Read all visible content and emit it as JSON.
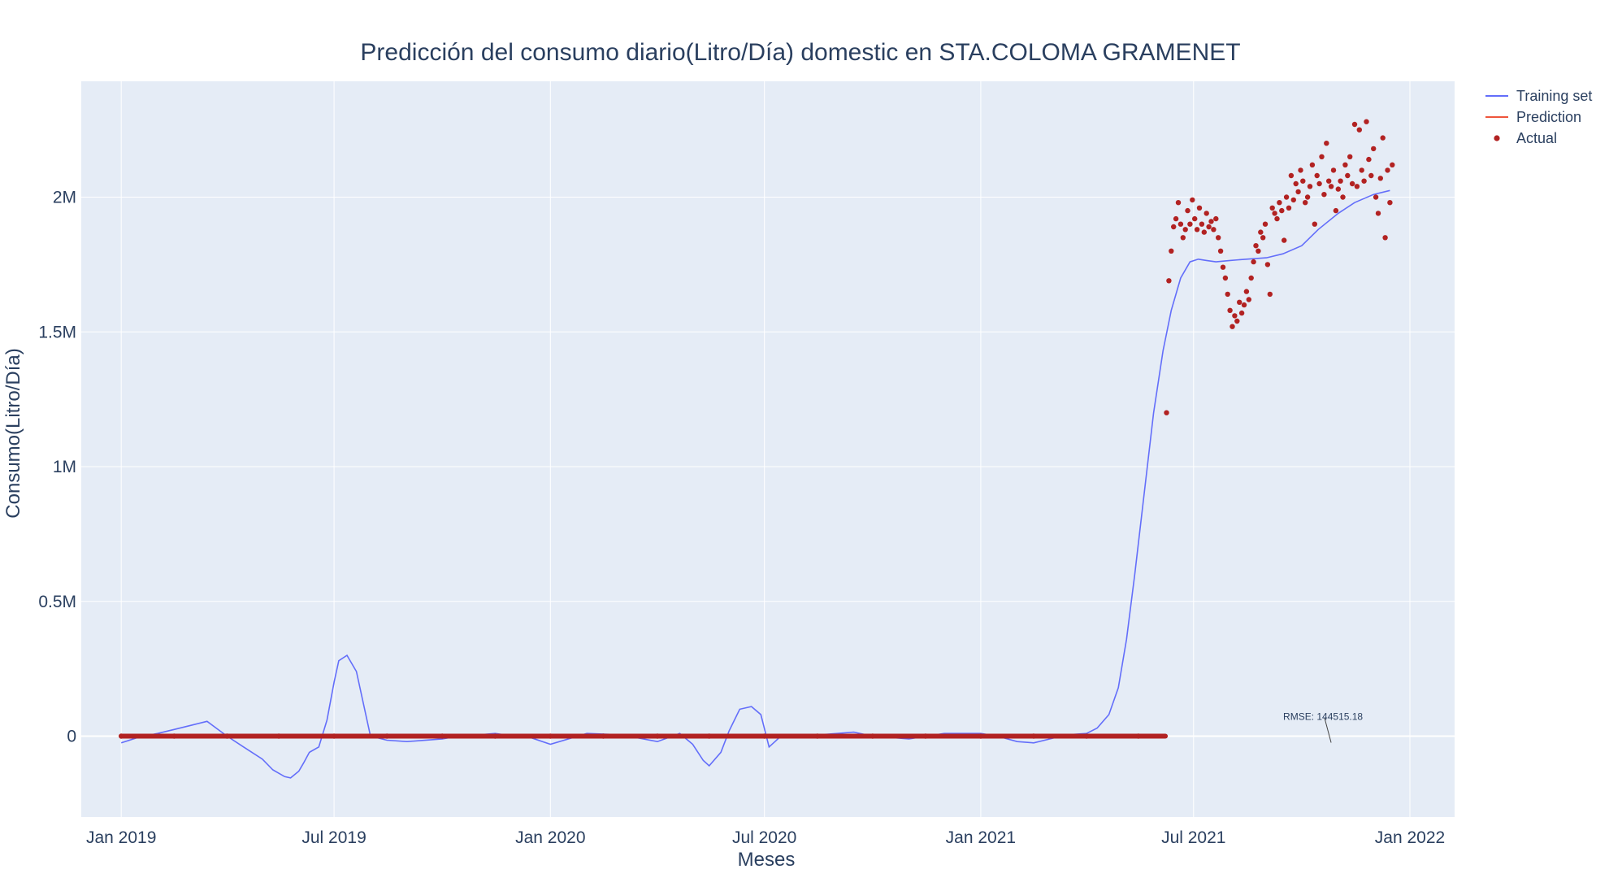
{
  "chart_data": {
    "type": "line",
    "title": "Predicción del consumo diario(Litro/Día) domestic en STA.COLOMA GRAMENET",
    "xlabel": "Meses",
    "ylabel": "Consumo(Litro/Día)",
    "x_axis_type": "date",
    "xlim": [
      "2018-11-28",
      "2022-02-08"
    ],
    "ylim": [
      -300000,
      2430000
    ],
    "x_ticks": [
      {
        "date": "2019-01-01",
        "label": "Jan 2019"
      },
      {
        "date": "2019-07-01",
        "label": "Jul 2019"
      },
      {
        "date": "2020-01-01",
        "label": "Jan 2020"
      },
      {
        "date": "2020-07-01",
        "label": "Jul 2020"
      },
      {
        "date": "2021-01-01",
        "label": "Jan 2021"
      },
      {
        "date": "2021-07-01",
        "label": "Jul 2021"
      },
      {
        "date": "2022-01-01",
        "label": "Jan 2022"
      }
    ],
    "y_ticks": [
      {
        "value": 0,
        "label": "0"
      },
      {
        "value": 500000,
        "label": "0.5M"
      },
      {
        "value": 1000000,
        "label": "1M"
      },
      {
        "value": 1500000,
        "label": "1.5M"
      },
      {
        "value": 2000000,
        "label": "2M"
      }
    ],
    "grid": true,
    "legend_position": "top-right",
    "series": [
      {
        "name": "Training set",
        "kind": "line",
        "color": "#636efa",
        "x": [
          "2019-01-01",
          "2019-01-15",
          "2019-02-01",
          "2019-02-15",
          "2019-03-01",
          "2019-03-15",
          "2019-04-01",
          "2019-04-15",
          "2019-05-01",
          "2019-05-10",
          "2019-05-20",
          "2019-05-25",
          "2019-06-01",
          "2019-06-05",
          "2019-06-10",
          "2019-06-18",
          "2019-06-25",
          "2019-07-01",
          "2019-07-05",
          "2019-07-12",
          "2019-07-20",
          "2019-08-01",
          "2019-08-15",
          "2019-09-01",
          "2019-10-01",
          "2019-10-15",
          "2019-11-01",
          "2019-11-15",
          "2019-12-01",
          "2019-12-15",
          "2020-01-01",
          "2020-02-01",
          "2020-03-01",
          "2020-04-01",
          "2020-04-20",
          "2020-05-01",
          "2020-05-10",
          "2020-05-15",
          "2020-05-25",
          "2020-06-01",
          "2020-06-10",
          "2020-06-20",
          "2020-06-28",
          "2020-07-05",
          "2020-07-10",
          "2020-07-15",
          "2020-07-20",
          "2020-08-01",
          "2020-09-01",
          "2020-09-15",
          "2020-10-01",
          "2020-11-01",
          "2020-12-01",
          "2021-01-01",
          "2021-01-15",
          "2021-02-01",
          "2021-02-15",
          "2021-03-01",
          "2021-03-15",
          "2021-04-01",
          "2021-04-10",
          "2021-04-20",
          "2021-04-28",
          "2021-05-05",
          "2021-05-12",
          "2021-05-20",
          "2021-05-28",
          "2021-06-05",
          "2021-06-12",
          "2021-06-20",
          "2021-06-28",
          "2021-07-05",
          "2021-07-12",
          "2021-07-20",
          "2021-08-01",
          "2021-08-15",
          "2021-09-01",
          "2021-09-15",
          "2021-10-01",
          "2021-10-15",
          "2021-11-01",
          "2021-11-15",
          "2021-12-01",
          "2021-12-15"
        ],
        "values": [
          -25000,
          -5000,
          10000,
          25000,
          40000,
          55000,
          0,
          -40000,
          -85000,
          -125000,
          -150000,
          -155000,
          -130000,
          -100000,
          -60000,
          -40000,
          60000,
          200000,
          280000,
          300000,
          240000,
          0,
          -15000,
          -20000,
          -10000,
          0,
          5000,
          10000,
          0,
          -5000,
          -30000,
          10000,
          5000,
          -20000,
          10000,
          -30000,
          -90000,
          -110000,
          -60000,
          20000,
          100000,
          110000,
          80000,
          -40000,
          -20000,
          0,
          5000,
          0,
          10000,
          15000,
          0,
          -10000,
          10000,
          10000,
          0,
          -20000,
          -25000,
          -10000,
          5000,
          10000,
          30000,
          80000,
          180000,
          360000,
          600000,
          900000,
          1200000,
          1430000,
          1580000,
          1700000,
          1760000,
          1770000,
          1765000,
          1760000,
          1765000,
          1770000,
          1775000,
          1790000,
          1820000,
          1880000,
          1940000,
          1980000,
          2010000,
          2025000
        ]
      },
      {
        "name": "Prediction",
        "kind": "line",
        "color": "#ef553b",
        "x": [],
        "values": []
      },
      {
        "name": "Actual",
        "kind": "scatter",
        "color": "#b22222",
        "x": [
          "2019-01-01",
          "2019-02-15",
          "2019-04-01",
          "2019-05-15",
          "2019-07-01",
          "2019-08-15",
          "2019-10-01",
          "2019-11-15",
          "2020-01-01",
          "2020-02-15",
          "2020-04-01",
          "2020-05-15",
          "2020-07-01",
          "2020-08-15",
          "2020-10-01",
          "2020-11-15",
          "2021-01-01",
          "2021-02-15",
          "2021-04-01",
          "2021-05-15",
          "2021-06-08",
          "2021-06-10",
          "2021-06-12",
          "2021-06-14",
          "2021-06-16",
          "2021-06-18",
          "2021-06-20",
          "2021-06-22",
          "2021-06-24",
          "2021-06-26",
          "2021-06-28",
          "2021-06-30",
          "2021-07-02",
          "2021-07-04",
          "2021-07-06",
          "2021-07-08",
          "2021-07-10",
          "2021-07-12",
          "2021-07-14",
          "2021-07-16",
          "2021-07-18",
          "2021-07-20",
          "2021-07-22",
          "2021-07-24",
          "2021-07-26",
          "2021-07-28",
          "2021-07-30",
          "2021-08-01",
          "2021-08-03",
          "2021-08-05",
          "2021-08-07",
          "2021-08-09",
          "2021-08-11",
          "2021-08-13",
          "2021-08-15",
          "2021-08-17",
          "2021-08-19",
          "2021-08-21",
          "2021-08-23",
          "2021-08-25",
          "2021-08-27",
          "2021-08-29",
          "2021-08-31",
          "2021-09-02",
          "2021-09-04",
          "2021-09-06",
          "2021-09-08",
          "2021-09-10",
          "2021-09-12",
          "2021-09-14",
          "2021-09-16",
          "2021-09-18",
          "2021-09-20",
          "2021-09-22",
          "2021-09-24",
          "2021-09-26",
          "2021-09-28",
          "2021-09-30",
          "2021-10-02",
          "2021-10-04",
          "2021-10-06",
          "2021-10-08",
          "2021-10-10",
          "2021-10-12",
          "2021-10-14",
          "2021-10-16",
          "2021-10-18",
          "2021-10-20",
          "2021-10-22",
          "2021-10-24",
          "2021-10-26",
          "2021-10-28",
          "2021-10-30",
          "2021-11-01",
          "2021-11-03",
          "2021-11-05",
          "2021-11-07",
          "2021-11-09",
          "2021-11-11",
          "2021-11-13",
          "2021-11-15",
          "2021-11-17",
          "2021-11-19",
          "2021-11-21",
          "2021-11-23",
          "2021-11-25",
          "2021-11-27",
          "2021-11-29",
          "2021-12-01",
          "2021-12-03",
          "2021-12-05",
          "2021-12-07",
          "2021-12-09",
          "2021-12-11",
          "2021-12-13",
          "2021-12-15",
          "2021-12-17"
        ],
        "values": [
          0,
          0,
          0,
          0,
          0,
          0,
          0,
          0,
          0,
          0,
          0,
          0,
          0,
          0,
          0,
          0,
          0,
          0,
          0,
          0,
          1200000,
          1690000,
          1800000,
          1890000,
          1920000,
          1980000,
          1900000,
          1850000,
          1880000,
          1950000,
          1900000,
          1990000,
          1920000,
          1880000,
          1960000,
          1900000,
          1870000,
          1940000,
          1890000,
          1910000,
          1880000,
          1920000,
          1850000,
          1800000,
          1740000,
          1700000,
          1640000,
          1580000,
          1520000,
          1560000,
          1540000,
          1610000,
          1570000,
          1600000,
          1650000,
          1620000,
          1700000,
          1760000,
          1820000,
          1800000,
          1870000,
          1850000,
          1900000,
          1750000,
          1640000,
          1960000,
          1940000,
          1920000,
          1980000,
          1950000,
          1840000,
          2000000,
          1960000,
          2080000,
          1990000,
          2050000,
          2020000,
          2100000,
          2060000,
          1980000,
          2000000,
          2040000,
          2120000,
          1900000,
          2080000,
          2050000,
          2150000,
          2010000,
          2200000,
          2060000,
          2040000,
          2100000,
          1950000,
          2030000,
          2060000,
          2000000,
          2120000,
          2080000,
          2150000,
          2050000,
          2270000,
          2040000,
          2250000,
          2100000,
          2060000,
          2280000,
          2140000,
          2080000,
          2180000,
          2000000,
          1940000,
          2070000,
          2220000,
          1850000,
          2100000,
          1980000,
          2120000
        ]
      }
    ],
    "annotations": [
      {
        "text": "RMSE: 144515.18",
        "x": "2021-10-26",
        "y": 0
      }
    ]
  }
}
